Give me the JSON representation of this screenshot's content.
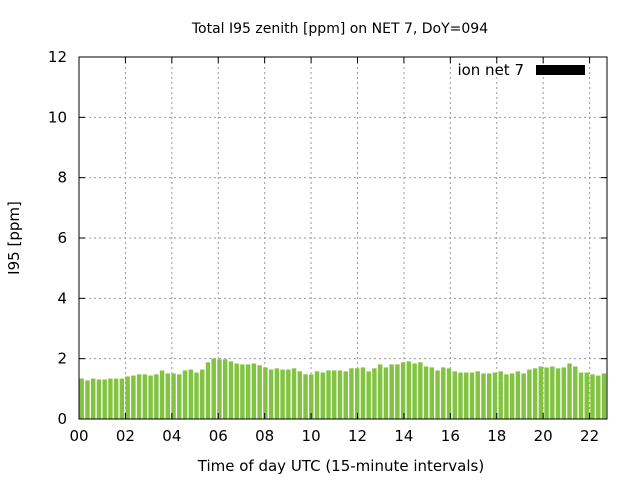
{
  "chart_data": {
    "type": "bar",
    "title": "Total I95 zenith [ppm] on NET 7, DoY=094",
    "xlabel": "Time of day UTC (15-minute intervals)",
    "ylabel": "I95 [ppm]",
    "ylim": [
      0,
      12
    ],
    "xlim": [
      0,
      22.75
    ],
    "yticks": [
      "0",
      "2",
      "4",
      "6",
      "8",
      "10",
      "12"
    ],
    "xticks": [
      "00",
      "02",
      "04",
      "06",
      "08",
      "10",
      "12",
      "14",
      "16",
      "18",
      "20",
      "22"
    ],
    "grid": true,
    "legend": {
      "label": "ion net 7",
      "color": "#000000",
      "placement": "top-right"
    },
    "bar_color": "#82c341",
    "interval_hours": 0.25,
    "values": [
      1.34,
      1.28,
      1.34,
      1.31,
      1.31,
      1.34,
      1.34,
      1.34,
      1.41,
      1.44,
      1.48,
      1.48,
      1.44,
      1.48,
      1.61,
      1.51,
      1.51,
      1.48,
      1.61,
      1.64,
      1.54,
      1.64,
      1.88,
      2.01,
      1.98,
      1.98,
      1.91,
      1.84,
      1.81,
      1.81,
      1.84,
      1.78,
      1.71,
      1.64,
      1.68,
      1.64,
      1.64,
      1.68,
      1.58,
      1.48,
      1.48,
      1.58,
      1.54,
      1.61,
      1.61,
      1.61,
      1.58,
      1.68,
      1.68,
      1.71,
      1.58,
      1.68,
      1.81,
      1.71,
      1.81,
      1.81,
      1.88,
      1.91,
      1.84,
      1.88,
      1.74,
      1.71,
      1.61,
      1.71,
      1.68,
      1.58,
      1.54,
      1.54,
      1.54,
      1.58,
      1.51,
      1.51,
      1.54,
      1.58,
      1.48,
      1.51,
      1.58,
      1.51,
      1.64,
      1.68,
      1.74,
      1.71,
      1.74,
      1.68,
      1.71,
      1.84,
      1.74,
      1.54,
      1.54,
      1.48,
      1.44,
      1.51
    ]
  }
}
